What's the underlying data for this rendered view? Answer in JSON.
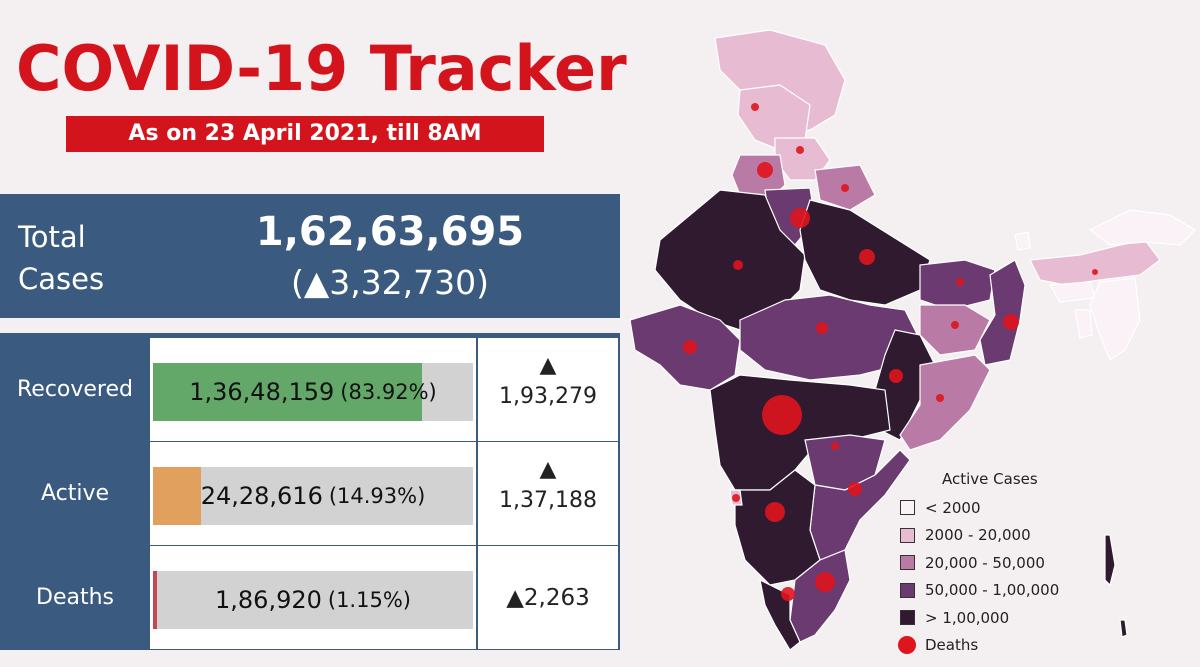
{
  "header": {
    "title": "COVID-19 Tracker",
    "subtitle": "As on 23 April 2021, till 8AM"
  },
  "total": {
    "label_line1": "Total",
    "label_line2": "Cases",
    "value": "1,62,63,695",
    "delta": "(▲3,32,730)"
  },
  "rows": [
    {
      "label": "Recovered",
      "value": "1,36,48,159",
      "percent_text": "(83.92%)",
      "percent": 83.92,
      "color": "#63a868",
      "delta_arrow": "▲",
      "delta": "1,93,279"
    },
    {
      "label": "Active",
      "value": "24,28,616",
      "percent_text": "(14.93%)",
      "percent": 14.93,
      "color": "#e2a05e",
      "delta_arrow": "▲",
      "delta": "1,37,188"
    },
    {
      "label": "Deaths",
      "value": "1,86,920",
      "percent_text": "(1.15%)",
      "percent": 1.15,
      "color": "#c5474f",
      "delta": "▲2,263"
    }
  ],
  "legend": {
    "title": "Active Cases",
    "items": [
      {
        "label": "< 2000",
        "color": "#fbf2f7"
      },
      {
        "label": "2000 - 20,000",
        "color": "#e7bcd3"
      },
      {
        "label": "20,000 - 50,000",
        "color": "#b97aa5"
      },
      {
        "label": "50,000 - 1,00,000",
        "color": "#6a3a70"
      },
      {
        "label": "> 1,00,000",
        "color": "#2f1a30"
      }
    ],
    "deaths_label": "Deaths",
    "deaths_color": "#e0141d"
  },
  "chart_data": {
    "type": "table",
    "title": "COVID-19 Tracker",
    "subtitle": "As on 23 April 2021, till 8AM",
    "total_cases": 16263695,
    "total_cases_change": 332730,
    "categories": [
      "Recovered",
      "Active",
      "Deaths"
    ],
    "values": [
      13648159,
      2428616,
      186920
    ],
    "percentages": [
      83.92,
      14.93,
      1.15
    ],
    "daily_change": [
      193279,
      137188,
      2263
    ],
    "map_legend": [
      "< 2000",
      "2000 - 20,000",
      "20,000 - 50,000",
      "50,000 - 1,00,000",
      "> 1,00,000",
      "Deaths"
    ]
  }
}
